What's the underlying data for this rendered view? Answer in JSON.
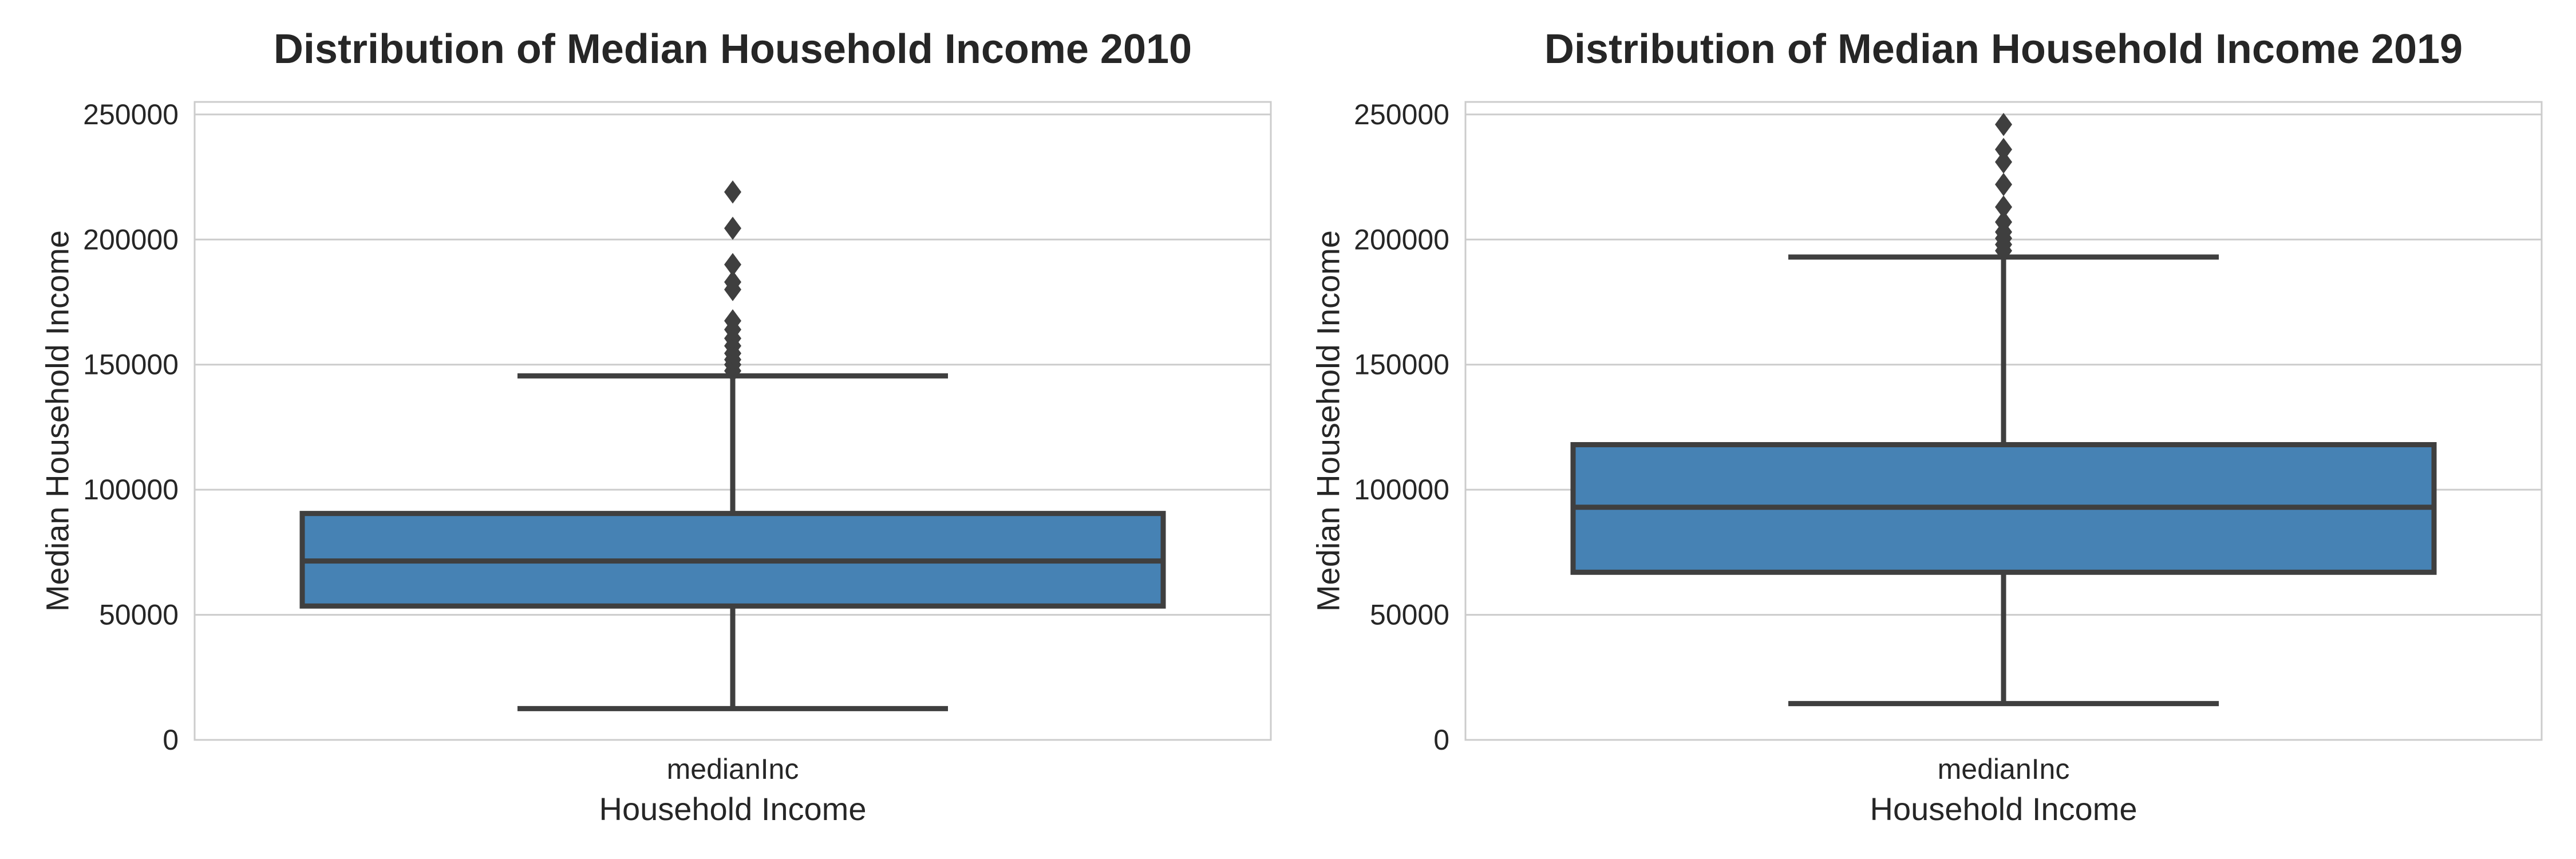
{
  "chart_data": [
    {
      "type": "box",
      "title": "Distribution of Median Household Income 2010",
      "xlabel": "Household Income",
      "ylabel": "Median Household Income",
      "categories": [
        "medianInc"
      ],
      "ylim": [
        0,
        255000
      ],
      "yticks": [
        0,
        50000,
        100000,
        150000,
        200000,
        250000
      ],
      "ytick_labels": [
        "0",
        "50000",
        "100000",
        "150000",
        "200000",
        "250000"
      ],
      "grid": true,
      "box_color": "#4682b4",
      "line_color": "#3f3f3f",
      "boxes": [
        {
          "name": "medianInc",
          "whisker_low": 12500,
          "q1": 53500,
          "median": 71500,
          "q3": 90500,
          "whisker_high": 145500,
          "outliers": [
            147500,
            150000,
            152000,
            154500,
            157500,
            160500,
            164000,
            167500,
            180000,
            183000,
            190000,
            204500,
            219000
          ]
        }
      ]
    },
    {
      "type": "box",
      "title": "Distribution of Median Household Income 2019",
      "xlabel": "Household Income",
      "ylabel": "Median Household Income",
      "categories": [
        "medianInc"
      ],
      "ylim": [
        0,
        255000
      ],
      "yticks": [
        0,
        50000,
        100000,
        150000,
        200000,
        250000
      ],
      "ytick_labels": [
        "0",
        "50000",
        "100000",
        "150000",
        "200000",
        "250000"
      ],
      "grid": true,
      "box_color": "#4682b4",
      "line_color": "#3f3f3f",
      "boxes": [
        {
          "name": "medianInc",
          "whisker_low": 14500,
          "q1": 67000,
          "median": 93000,
          "q3": 118000,
          "whisker_high": 193000,
          "outliers": [
            195500,
            198000,
            200500,
            203000,
            207000,
            213000,
            222000,
            231000,
            236000,
            246000
          ]
        }
      ]
    }
  ]
}
